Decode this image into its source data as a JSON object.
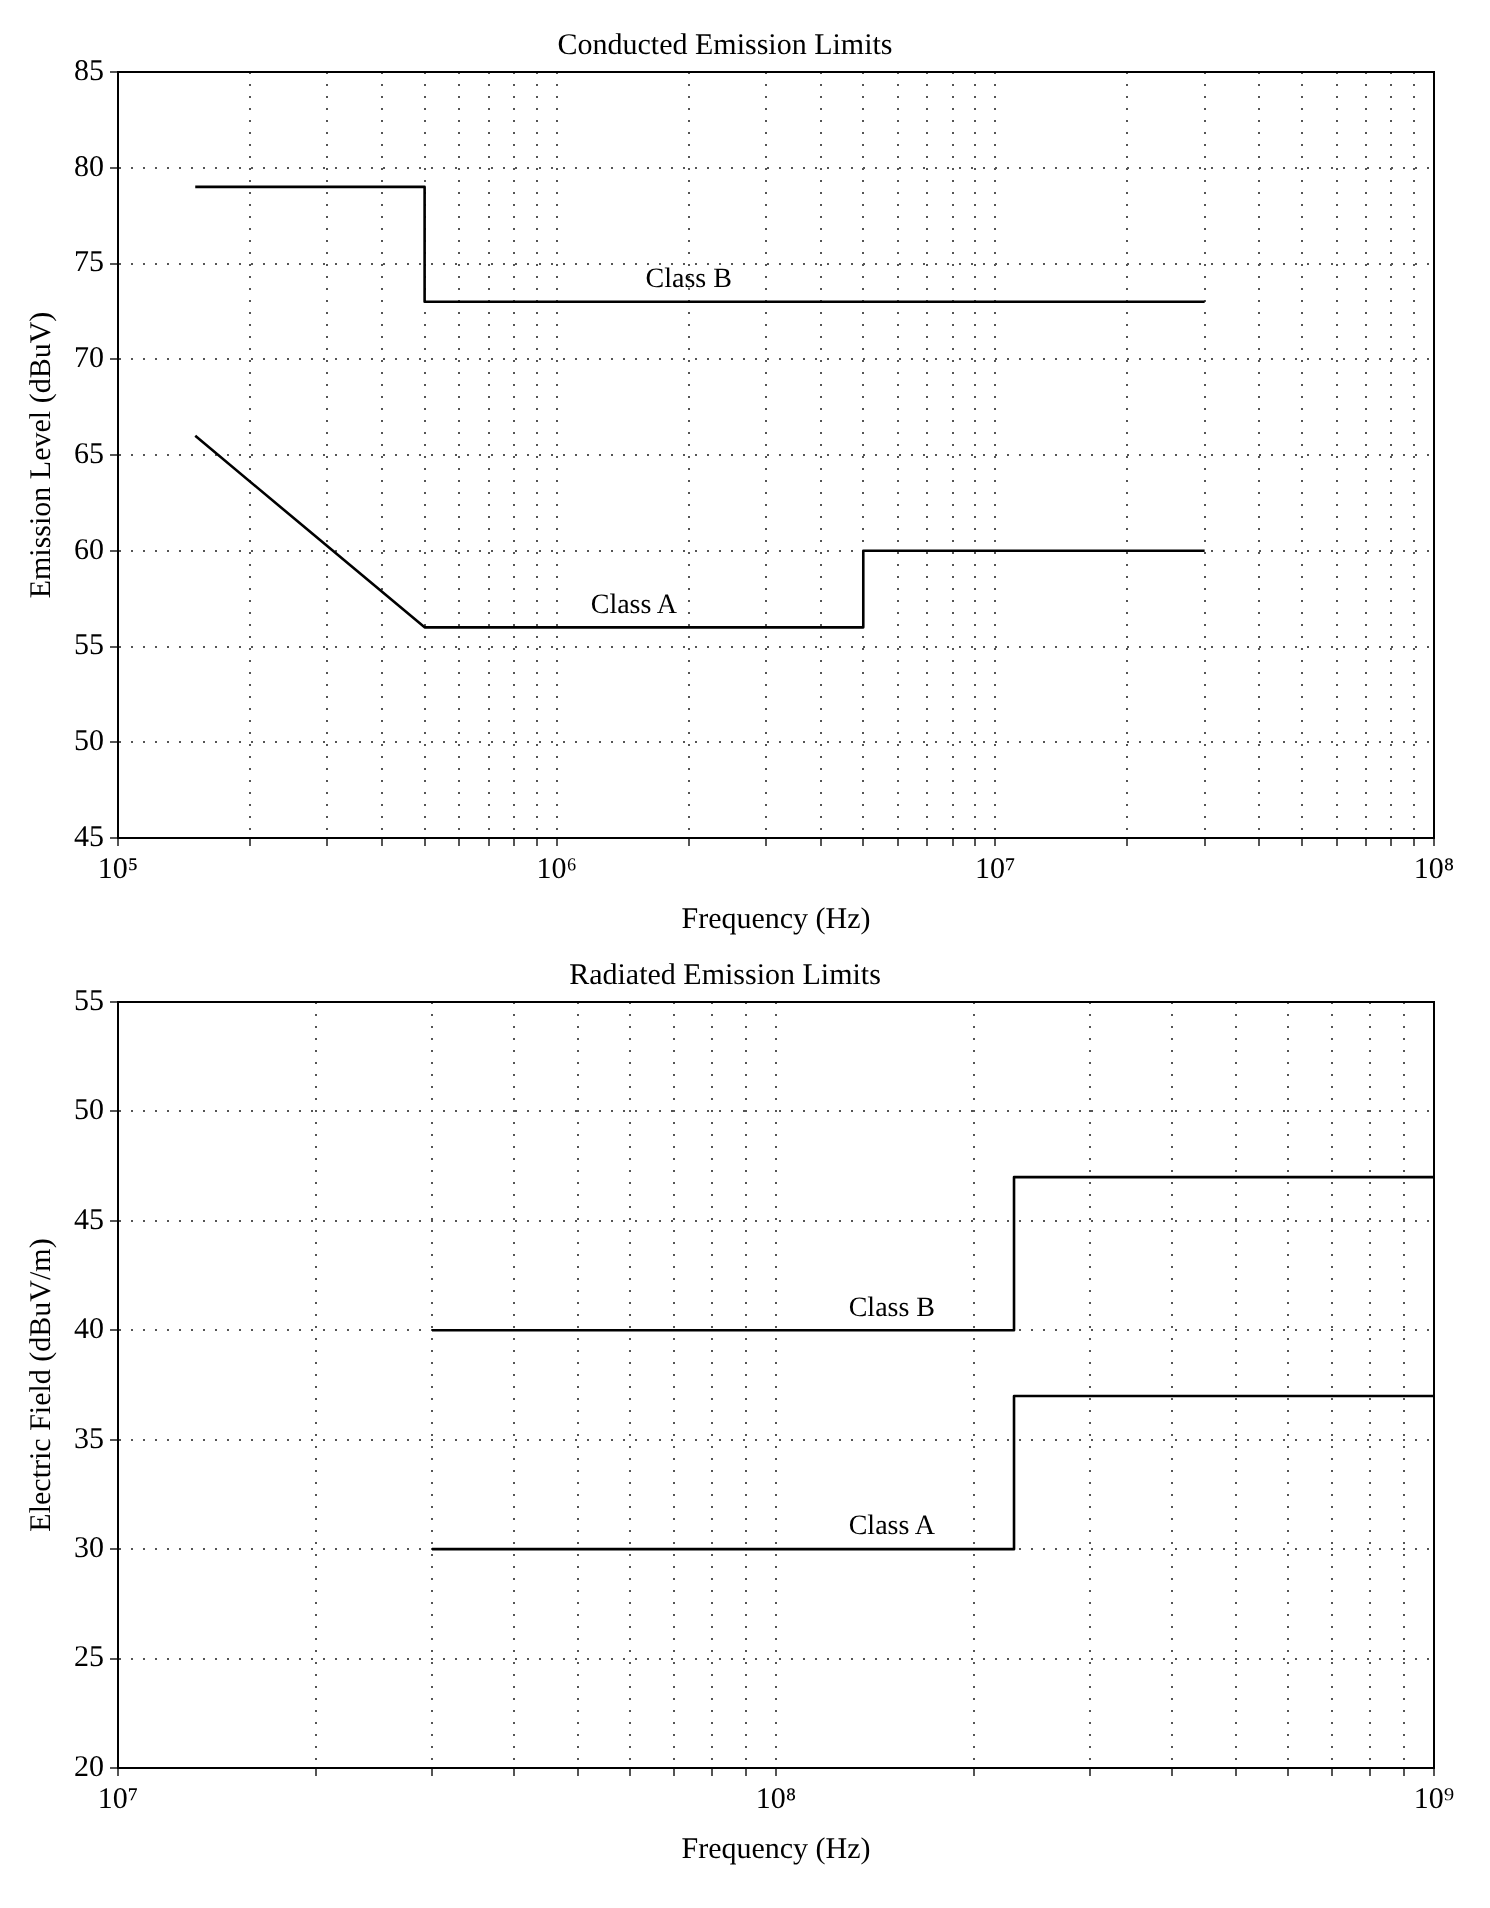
{
  "chart_data": [
    {
      "type": "line",
      "title": "Conducted Emission Limits",
      "xlabel": "Frequency (Hz)",
      "ylabel": "Emission Level (dBuV)",
      "log": "x",
      "grid": true,
      "xlim": [
        100000,
        100000000
      ],
      "ylim": [
        45,
        85
      ],
      "xticks": [
        {
          "value": 100000,
          "label": "10⁵"
        },
        {
          "value": 200000,
          "label": null
        },
        {
          "value": 300000,
          "label": null
        },
        {
          "value": 400000,
          "label": null
        },
        {
          "value": 500000,
          "label": null
        },
        {
          "value": 600000,
          "label": null
        },
        {
          "value": 700000,
          "label": null
        },
        {
          "value": 800000,
          "label": null
        },
        {
          "value": 900000,
          "label": null
        },
        {
          "value": 1000000,
          "label": "10⁶"
        },
        {
          "value": 2000000,
          "label": null
        },
        {
          "value": 3000000,
          "label": null
        },
        {
          "value": 4000000,
          "label": null
        },
        {
          "value": 5000000,
          "label": null
        },
        {
          "value": 6000000,
          "label": null
        },
        {
          "value": 7000000,
          "label": null
        },
        {
          "value": 8000000,
          "label": null
        },
        {
          "value": 9000000,
          "label": null
        },
        {
          "value": 10000000,
          "label": "10⁷"
        },
        {
          "value": 20000000,
          "label": null
        },
        {
          "value": 30000000,
          "label": null
        },
        {
          "value": 40000000,
          "label": null
        },
        {
          "value": 50000000,
          "label": null
        },
        {
          "value": 60000000,
          "label": null
        },
        {
          "value": 70000000,
          "label": null
        },
        {
          "value": 80000000,
          "label": null
        },
        {
          "value": 90000000,
          "label": null
        },
        {
          "value": 100000000,
          "label": "10⁸"
        }
      ],
      "yticks": [
        45,
        50,
        55,
        60,
        65,
        70,
        75,
        80,
        85
      ],
      "series": [
        {
          "color": "#000000",
          "x": [
            150000,
            500000,
            500000,
            30000000
          ],
          "values": [
            79,
            79,
            73,
            73
          ]
        },
        {
          "color": "#000000",
          "x": [
            150000,
            500000,
            5000000,
            5000000,
            30000000
          ],
          "values": [
            66,
            56,
            56,
            60,
            60
          ]
        }
      ],
      "annotations": [
        {
          "text": "Class B",
          "x": 2000000,
          "y": 73
        },
        {
          "text": "Class A",
          "x": 1500000,
          "y": 56
        }
      ]
    },
    {
      "type": "line",
      "title": "Radiated Emission Limits",
      "xlabel": "Frequency (Hz)",
      "ylabel": "Electric Field (dBuV/m)",
      "log": "x",
      "grid": true,
      "xlim": [
        10000000,
        1000000000
      ],
      "ylim": [
        20,
        55
      ],
      "xticks": [
        {
          "value": 10000000,
          "label": "10⁷"
        },
        {
          "value": 20000000,
          "label": null
        },
        {
          "value": 30000000,
          "label": null
        },
        {
          "value": 40000000,
          "label": null
        },
        {
          "value": 50000000,
          "label": null
        },
        {
          "value": 60000000,
          "label": null
        },
        {
          "value": 70000000,
          "label": null
        },
        {
          "value": 80000000,
          "label": null
        },
        {
          "value": 90000000,
          "label": null
        },
        {
          "value": 100000000,
          "label": "10⁸"
        },
        {
          "value": 200000000,
          "label": null
        },
        {
          "value": 300000000,
          "label": null
        },
        {
          "value": 400000000,
          "label": null
        },
        {
          "value": 500000000,
          "label": null
        },
        {
          "value": 600000000,
          "label": null
        },
        {
          "value": 700000000,
          "label": null
        },
        {
          "value": 800000000,
          "label": null
        },
        {
          "value": 900000000,
          "label": null
        },
        {
          "value": 1000000000,
          "label": "10⁹"
        }
      ],
      "yticks": [
        20,
        25,
        30,
        35,
        40,
        45,
        50,
        55
      ],
      "series": [
        {
          "color": "#000000",
          "x": [
            30000000,
            230000000,
            230000000,
            1000000000
          ],
          "values": [
            40,
            40,
            47,
            47
          ]
        },
        {
          "color": "#000000",
          "x": [
            30000000,
            230000000,
            230000000,
            1000000000
          ],
          "values": [
            30,
            30,
            37,
            37
          ]
        }
      ],
      "annotations": [
        {
          "text": "Class B",
          "x": 150000000,
          "y": 40
        },
        {
          "text": "Class A",
          "x": 150000000,
          "y": 30
        }
      ]
    }
  ]
}
